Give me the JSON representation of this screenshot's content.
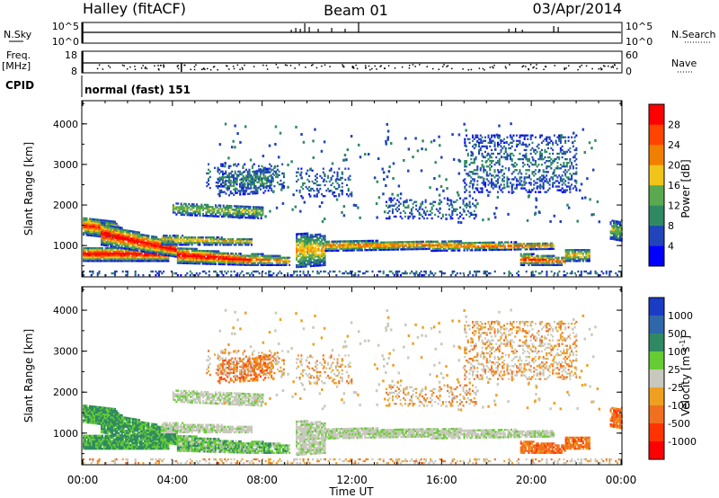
{
  "header": {
    "station": "Halley (fitACF)",
    "beam": "Beam 01",
    "date": "03/Apr/2014"
  },
  "top_strips": {
    "nsky_label": "N.Sky",
    "nsky_ticks": [
      "10^5",
      "10^0"
    ],
    "nsearch_label": "N.Search",
    "nsearch_ticks": [
      "10^5",
      "10^0"
    ],
    "freq_label": "Freq.",
    "freq_unit": "[MHz]",
    "freq_ticks": [
      "18",
      "8"
    ],
    "nave_label": "Nave",
    "nave_ticks": [
      "60",
      "0"
    ],
    "cpid_label": "CPID",
    "cpid_value": "normal (fast) 151"
  },
  "colors": {
    "power_scale": [
      "#0000ff",
      "#2244bb",
      "#2f8a63",
      "#5aa84f",
      "#f0c419",
      "#f07f00",
      "#ff4400",
      "#ff0000"
    ],
    "velocity_scale": [
      "#1a3cc4",
      "#3066aa",
      "#2f8a63",
      "#66cc33",
      "#c8c8bc",
      "#f0a020",
      "#f07020",
      "#ff3300",
      "#ff0000"
    ]
  },
  "chart_data": [
    {
      "type": "heatmap",
      "name": "power",
      "ylabel": "Slant Range [km]",
      "ylim": [
        250,
        4550
      ],
      "yticks": [
        "1000",
        "2000",
        "3000",
        "4000"
      ],
      "colorbar_label": "Power [dB]",
      "colorbar_ticks": [
        "4",
        "8",
        "12",
        "16",
        "20",
        "24",
        "28"
      ],
      "colorbar_range": [
        0,
        32
      ]
    },
    {
      "type": "heatmap",
      "name": "velocity",
      "ylabel": "Slant Range [km]",
      "ylim": [
        250,
        4550
      ],
      "yticks": [
        "1000",
        "2000",
        "3000",
        "4000"
      ],
      "colorbar_label": "Velocity [m s-1]",
      "colorbar_ticks": [
        "1000",
        "500",
        "100",
        "25",
        "-25",
        "-100",
        "-500",
        "-1000"
      ]
    }
  ],
  "xaxis": {
    "label": "Time UT",
    "ticks": [
      "00:00",
      "04:00",
      "08:00",
      "12:00",
      "16:00",
      "20:00",
      "00:00"
    ]
  }
}
